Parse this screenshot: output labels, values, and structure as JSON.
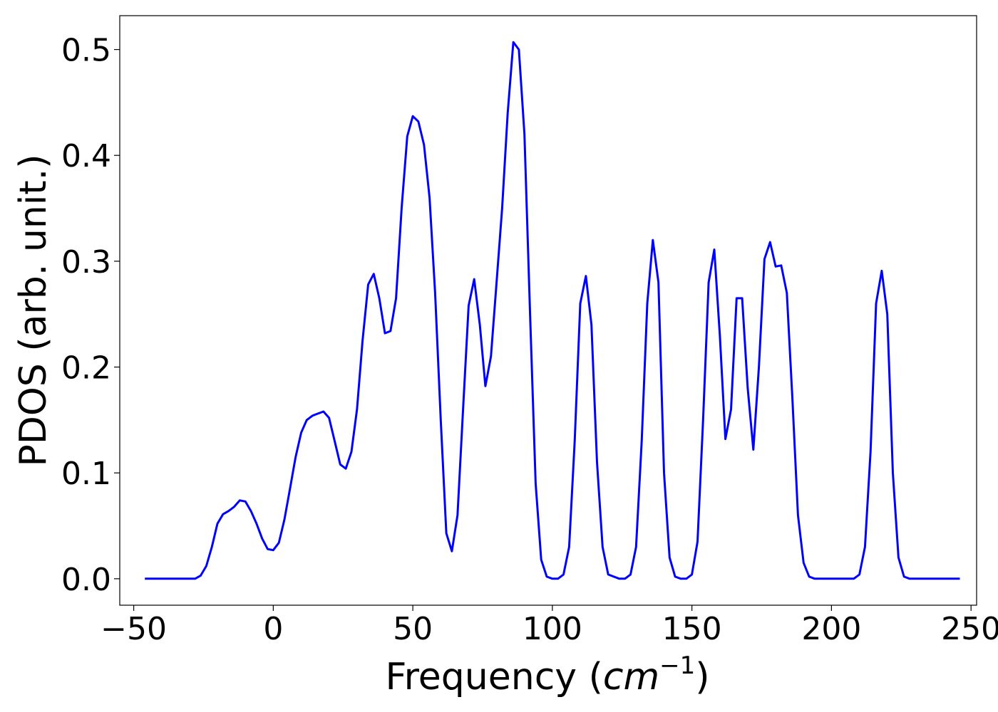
{
  "chart_data": {
    "type": "line",
    "title": "",
    "xlabel_text": "Frequency (",
    "xlabel_math_base": "cm",
    "xlabel_math_sup": "−1",
    "xlabel_close": ")",
    "ylabel": "PDOS (arb. unit.)",
    "xlim": [
      -55,
      252
    ],
    "ylim": [
      -0.025,
      0.532
    ],
    "x_ticks": [
      -50,
      0,
      50,
      100,
      150,
      200,
      250
    ],
    "x_tick_labels": [
      "−50",
      "0",
      "50",
      "100",
      "150",
      "200",
      "250"
    ],
    "y_ticks": [
      0.0,
      0.1,
      0.2,
      0.3,
      0.4,
      0.5
    ],
    "y_tick_labels": [
      "0.0",
      "0.1",
      "0.2",
      "0.3",
      "0.4",
      "0.5"
    ],
    "grid": false,
    "series": [
      {
        "color": "#0000ff",
        "x": [
          -46,
          -36,
          -28,
          -26,
          -24,
          -22,
          -20,
          -18,
          -16,
          -14,
          -12,
          -10,
          -8,
          -6,
          -4,
          -2,
          0,
          2,
          4,
          6,
          8,
          10,
          12,
          14,
          16,
          18,
          20,
          22,
          24,
          26,
          28,
          30,
          32,
          34,
          36,
          38,
          40,
          42,
          44,
          46,
          48,
          50,
          52,
          54,
          56,
          58,
          60,
          62,
          64,
          66,
          68,
          70,
          72,
          74,
          76,
          78,
          80,
          82,
          84,
          86,
          88,
          90,
          92,
          94,
          96,
          98,
          100,
          102,
          104,
          106,
          108,
          110,
          112,
          114,
          116,
          118,
          120,
          124,
          126,
          128,
          130,
          132,
          134,
          136,
          138,
          140,
          142,
          144,
          146,
          148,
          150,
          152,
          154,
          156,
          158,
          160,
          162,
          164,
          166,
          168,
          170,
          172,
          174,
          176,
          178,
          180,
          182,
          184,
          186,
          188,
          190,
          192,
          194,
          196,
          200,
          206,
          208,
          210,
          212,
          214,
          216,
          218,
          220,
          222,
          224,
          226,
          228,
          230,
          240,
          246
        ],
        "y": [
          0.0,
          0.0,
          0.0,
          0.003,
          0.012,
          0.03,
          0.052,
          0.061,
          0.064,
          0.068,
          0.074,
          0.073,
          0.064,
          0.052,
          0.038,
          0.028,
          0.027,
          0.034,
          0.056,
          0.085,
          0.115,
          0.138,
          0.15,
          0.154,
          0.156,
          0.158,
          0.152,
          0.13,
          0.108,
          0.104,
          0.12,
          0.16,
          0.225,
          0.278,
          0.288,
          0.265,
          0.232,
          0.234,
          0.265,
          0.35,
          0.418,
          0.437,
          0.432,
          0.41,
          0.36,
          0.27,
          0.15,
          0.043,
          0.026,
          0.06,
          0.16,
          0.258,
          0.283,
          0.24,
          0.182,
          0.21,
          0.28,
          0.35,
          0.44,
          0.507,
          0.5,
          0.42,
          0.25,
          0.09,
          0.018,
          0.002,
          0.0,
          0.0,
          0.004,
          0.03,
          0.13,
          0.26,
          0.286,
          0.24,
          0.11,
          0.03,
          0.004,
          0.0,
          0.0,
          0.004,
          0.03,
          0.13,
          0.26,
          0.32,
          0.28,
          0.1,
          0.02,
          0.002,
          0.0,
          0.0,
          0.004,
          0.035,
          0.15,
          0.28,
          0.311,
          0.23,
          0.132,
          0.16,
          0.265,
          0.265,
          0.18,
          0.122,
          0.2,
          0.302,
          0.318,
          0.295,
          0.296,
          0.27,
          0.17,
          0.06,
          0.015,
          0.002,
          0.0,
          0.0,
          0.0,
          0.0,
          0.0,
          0.004,
          0.03,
          0.12,
          0.26,
          0.291,
          0.25,
          0.1,
          0.02,
          0.002,
          0.0,
          0.0,
          0.0,
          0.0
        ]
      }
    ]
  }
}
